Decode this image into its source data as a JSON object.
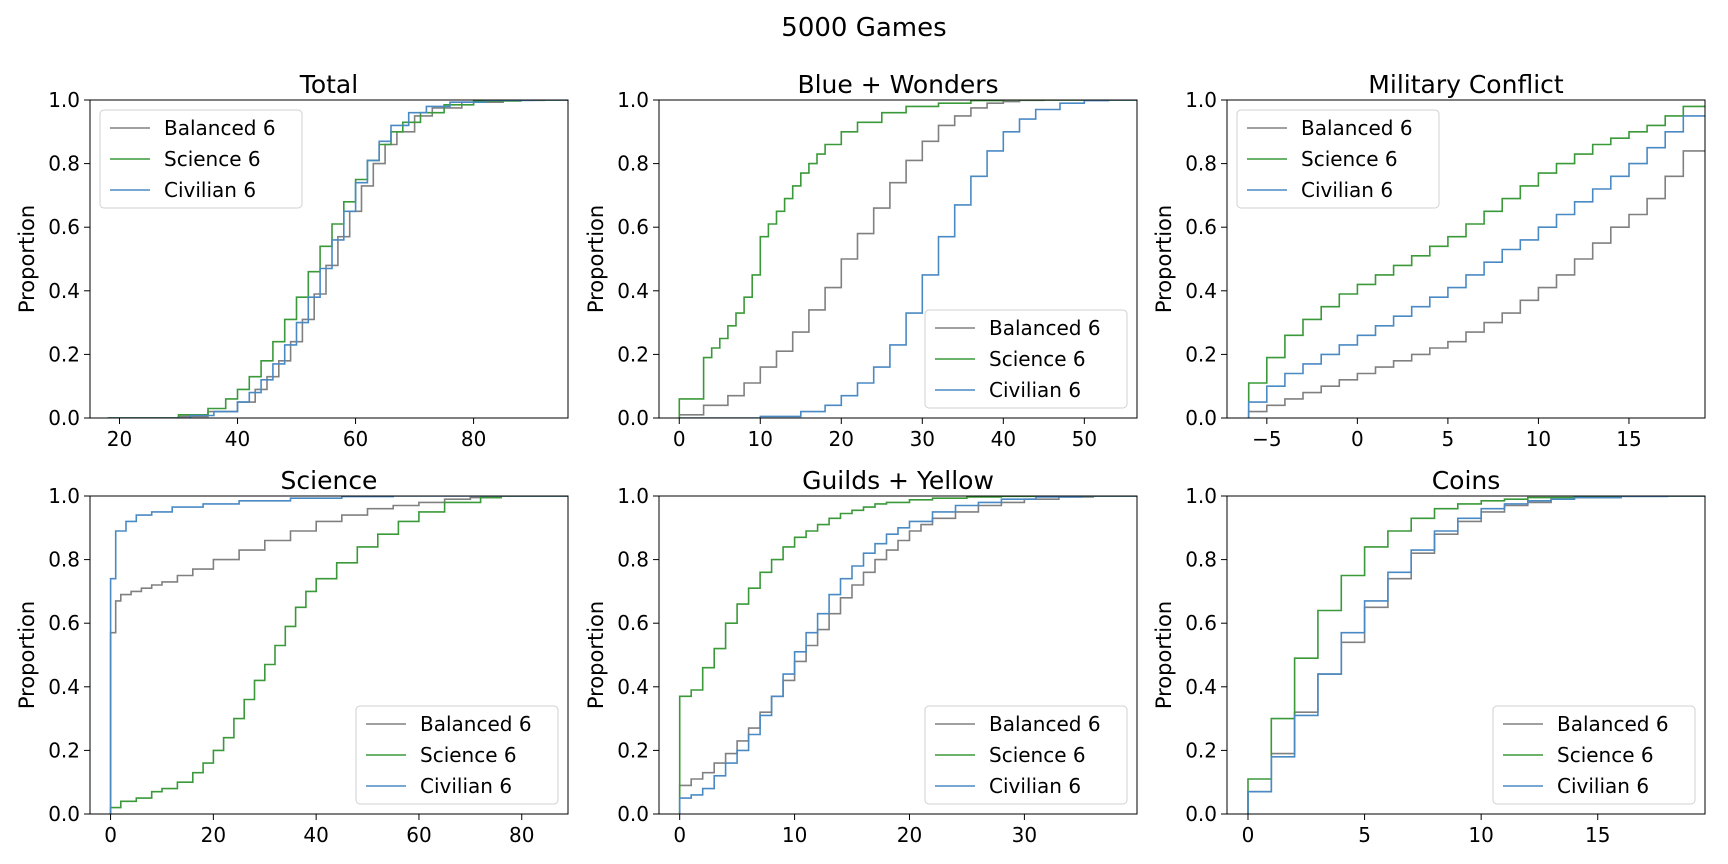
{
  "figure": {
    "title": "5000 Games"
  },
  "colors": {
    "Balanced 6": "#808080",
    "Science 6": "#3a9a3a",
    "Civilian 6": "#4a8ac4",
    "axis": "#000000"
  },
  "chart_data": [
    {
      "type": "line",
      "title": "Total",
      "ylabel": "Proportion",
      "xlabel": "",
      "xlim": [
        15,
        96
      ],
      "ylim": [
        0,
        1
      ],
      "xticks": [
        20,
        40,
        60,
        80
      ],
      "xtick_labels": [
        "20",
        "40",
        "60",
        "80"
      ],
      "yticks": [
        0,
        0.2,
        0.4,
        0.6,
        0.8,
        1.0
      ],
      "ytick_labels": [
        "0.0",
        "0.2",
        "0.4",
        "0.6",
        "0.8",
        "1.0"
      ],
      "legend": "upper-left",
      "series": [
        {
          "name": "Balanced 6",
          "x": [
            18,
            30,
            35,
            40,
            43,
            45,
            47,
            49,
            51,
            53,
            55,
            57,
            59,
            61,
            63,
            65,
            67,
            70,
            73,
            78,
            85,
            92
          ],
          "y": [
            0,
            0.005,
            0.02,
            0.05,
            0.09,
            0.13,
            0.18,
            0.24,
            0.31,
            0.39,
            0.48,
            0.57,
            0.65,
            0.73,
            0.8,
            0.86,
            0.9,
            0.95,
            0.975,
            0.993,
            0.999,
            1.0
          ]
        },
        {
          "name": "Science 6",
          "x": [
            18,
            30,
            35,
            38,
            40,
            42,
            44,
            46,
            48,
            50,
            52,
            54,
            56,
            58,
            60,
            62,
            64,
            66,
            68,
            71,
            75,
            80,
            88
          ],
          "y": [
            0,
            0.01,
            0.03,
            0.06,
            0.09,
            0.13,
            0.18,
            0.24,
            0.31,
            0.38,
            0.46,
            0.54,
            0.61,
            0.68,
            0.75,
            0.81,
            0.86,
            0.9,
            0.93,
            0.96,
            0.985,
            0.997,
            1.0
          ]
        },
        {
          "name": "Civilian 6",
          "x": [
            18,
            32,
            36,
            40,
            42,
            44,
            46,
            48,
            50,
            52,
            54,
            56,
            58,
            60,
            62,
            64,
            66,
            69,
            72,
            76,
            82,
            90
          ],
          "y": [
            0,
            0.008,
            0.02,
            0.05,
            0.08,
            0.12,
            0.17,
            0.23,
            0.3,
            0.38,
            0.47,
            0.56,
            0.65,
            0.74,
            0.81,
            0.87,
            0.92,
            0.96,
            0.98,
            0.993,
            0.999,
            1.0
          ]
        }
      ]
    },
    {
      "type": "line",
      "title": "Blue + Wonders",
      "ylabel": "Proportion",
      "xlabel": "",
      "xlim": [
        -2.5,
        56.5
      ],
      "ylim": [
        0,
        1
      ],
      "xticks": [
        0,
        10,
        20,
        30,
        40,
        50
      ],
      "xtick_labels": [
        "0",
        "10",
        "20",
        "30",
        "40",
        "50"
      ],
      "yticks": [
        0,
        0.2,
        0.4,
        0.6,
        0.8,
        1.0
      ],
      "ytick_labels": [
        "0.0",
        "0.2",
        "0.4",
        "0.6",
        "0.8",
        "1.0"
      ],
      "legend": "lower-right",
      "series": [
        {
          "name": "Balanced 6",
          "x": [
            0,
            3,
            6,
            8,
            10,
            12,
            14,
            16,
            18,
            20,
            22,
            24,
            26,
            28,
            30,
            32,
            34,
            36,
            38,
            40,
            42,
            45
          ],
          "y": [
            0.01,
            0.04,
            0.07,
            0.11,
            0.16,
            0.21,
            0.27,
            0.34,
            0.41,
            0.5,
            0.58,
            0.66,
            0.74,
            0.81,
            0.87,
            0.92,
            0.95,
            0.975,
            0.99,
            0.995,
            0.999,
            1.0
          ]
        },
        {
          "name": "Science 6",
          "x": [
            0,
            3,
            4,
            5,
            6,
            7,
            8,
            9,
            10,
            11,
            12,
            13,
            14,
            15,
            16,
            17,
            18,
            20,
            22,
            25,
            28,
            32,
            36,
            40
          ],
          "y": [
            0.06,
            0.19,
            0.22,
            0.25,
            0.29,
            0.33,
            0.38,
            0.45,
            0.57,
            0.61,
            0.65,
            0.69,
            0.73,
            0.77,
            0.8,
            0.83,
            0.86,
            0.9,
            0.93,
            0.96,
            0.98,
            0.99,
            0.998,
            1.0
          ]
        },
        {
          "name": "Civilian 6",
          "x": [
            0,
            10,
            15,
            18,
            20,
            22,
            24,
            26,
            28,
            30,
            32,
            34,
            36,
            38,
            40,
            42,
            44,
            47,
            50,
            53
          ],
          "y": [
            0,
            0.005,
            0.02,
            0.04,
            0.07,
            0.11,
            0.16,
            0.23,
            0.33,
            0.45,
            0.57,
            0.67,
            0.76,
            0.84,
            0.9,
            0.94,
            0.97,
            0.99,
            0.998,
            1.0
          ]
        }
      ]
    },
    {
      "type": "line",
      "title": "Military Conflict",
      "ylabel": "Proportion",
      "xlabel": "",
      "xlim": [
        -7.2,
        19.2
      ],
      "ylim": [
        0,
        1
      ],
      "xticks": [
        -5,
        0,
        5,
        10,
        15
      ],
      "xtick_labels": [
        "−5",
        "0",
        "5",
        "10",
        "15"
      ],
      "yticks": [
        0,
        0.2,
        0.4,
        0.6,
        0.8,
        1.0
      ],
      "ytick_labels": [
        "0.0",
        "0.2",
        "0.4",
        "0.6",
        "0.8",
        "1.0"
      ],
      "legend": "upper-left",
      "series": [
        {
          "name": "Balanced 6",
          "x": [
            -6,
            -5,
            -4,
            -3,
            -2,
            -1,
            0,
            1,
            2,
            3,
            4,
            5,
            6,
            7,
            8,
            9,
            10,
            11,
            12,
            13,
            14,
            15,
            16,
            17,
            18
          ],
          "y": [
            0.02,
            0.04,
            0.06,
            0.08,
            0.1,
            0.12,
            0.14,
            0.16,
            0.18,
            0.2,
            0.22,
            0.24,
            0.27,
            0.3,
            0.33,
            0.37,
            0.41,
            0.45,
            0.5,
            0.55,
            0.6,
            0.64,
            0.69,
            0.76,
            0.84
          ]
        },
        {
          "name": "Science 6",
          "x": [
            -6,
            -5,
            -4,
            -3,
            -2,
            -1,
            0,
            1,
            2,
            3,
            4,
            5,
            6,
            7,
            8,
            9,
            10,
            11,
            12,
            13,
            14,
            15,
            16,
            17,
            18
          ],
          "y": [
            0.11,
            0.19,
            0.26,
            0.31,
            0.35,
            0.39,
            0.42,
            0.45,
            0.48,
            0.51,
            0.54,
            0.57,
            0.61,
            0.65,
            0.69,
            0.73,
            0.77,
            0.8,
            0.83,
            0.86,
            0.88,
            0.9,
            0.92,
            0.95,
            0.98
          ]
        },
        {
          "name": "Civilian 6",
          "x": [
            -6,
            -5,
            -4,
            -3,
            -2,
            -1,
            0,
            1,
            2,
            3,
            4,
            5,
            6,
            7,
            8,
            9,
            10,
            11,
            12,
            13,
            14,
            15,
            16,
            17,
            18
          ],
          "y": [
            0.05,
            0.1,
            0.14,
            0.17,
            0.2,
            0.23,
            0.26,
            0.29,
            0.32,
            0.35,
            0.38,
            0.41,
            0.45,
            0.49,
            0.53,
            0.56,
            0.6,
            0.64,
            0.68,
            0.72,
            0.76,
            0.8,
            0.85,
            0.9,
            0.95
          ]
        }
      ]
    },
    {
      "type": "line",
      "title": "Science",
      "ylabel": "Proportion",
      "xlabel": "",
      "xlim": [
        -4,
        89
      ],
      "ylim": [
        0,
        1
      ],
      "xticks": [
        0,
        20,
        40,
        60,
        80
      ],
      "xtick_labels": [
        "0",
        "20",
        "40",
        "60",
        "80"
      ],
      "yticks": [
        0,
        0.2,
        0.4,
        0.6,
        0.8,
        1.0
      ],
      "ytick_labels": [
        "0.0",
        "0.2",
        "0.4",
        "0.6",
        "0.8",
        "1.0"
      ],
      "legend": "lower-right",
      "series": [
        {
          "name": "Balanced 6",
          "x": [
            0,
            1,
            2,
            4,
            6,
            8,
            10,
            13,
            16,
            20,
            25,
            30,
            35,
            40,
            45,
            50,
            55,
            60,
            65,
            70,
            76
          ],
          "y": [
            0.57,
            0.67,
            0.69,
            0.7,
            0.71,
            0.72,
            0.73,
            0.75,
            0.77,
            0.8,
            0.83,
            0.86,
            0.89,
            0.92,
            0.94,
            0.96,
            0.97,
            0.98,
            0.99,
            0.995,
            1.0
          ]
        },
        {
          "name": "Science 6",
          "x": [
            0,
            2,
            5,
            8,
            10,
            13,
            16,
            18,
            20,
            22,
            24,
            26,
            28,
            30,
            32,
            34,
            36,
            38,
            40,
            44,
            48,
            52,
            56,
            60,
            65,
            72,
            76
          ],
          "y": [
            0.02,
            0.04,
            0.05,
            0.07,
            0.08,
            0.1,
            0.13,
            0.16,
            0.2,
            0.24,
            0.3,
            0.36,
            0.42,
            0.47,
            0.53,
            0.59,
            0.65,
            0.7,
            0.74,
            0.79,
            0.84,
            0.88,
            0.92,
            0.95,
            0.98,
            0.995,
            1.0
          ]
        },
        {
          "name": "Civilian 6",
          "x": [
            0,
            1,
            3,
            5,
            8,
            12,
            18,
            25,
            35,
            45,
            55
          ],
          "y": [
            0.74,
            0.89,
            0.92,
            0.94,
            0.95,
            0.965,
            0.975,
            0.985,
            0.993,
            0.998,
            1.0
          ]
        }
      ]
    },
    {
      "type": "line",
      "title": "Guilds + Yellow",
      "ylabel": "Proportion",
      "xlabel": "",
      "xlim": [
        -1.8,
        39.8
      ],
      "ylim": [
        0,
        1
      ],
      "xticks": [
        0,
        10,
        20,
        30
      ],
      "xtick_labels": [
        "0",
        "10",
        "20",
        "30"
      ],
      "yticks": [
        0,
        0.2,
        0.4,
        0.6,
        0.8,
        1.0
      ],
      "ytick_labels": [
        "0.0",
        "0.2",
        "0.4",
        "0.6",
        "0.8",
        "1.0"
      ],
      "legend": "lower-right",
      "series": [
        {
          "name": "Balanced 6",
          "x": [
            0,
            1,
            2,
            3,
            4,
            5,
            6,
            7,
            8,
            9,
            10,
            11,
            12,
            13,
            14,
            15,
            16,
            17,
            18,
            19,
            20,
            21,
            22,
            24,
            26,
            28,
            30,
            33,
            36
          ],
          "y": [
            0.09,
            0.11,
            0.13,
            0.16,
            0.19,
            0.23,
            0.27,
            0.32,
            0.37,
            0.42,
            0.48,
            0.53,
            0.58,
            0.63,
            0.68,
            0.72,
            0.76,
            0.8,
            0.83,
            0.86,
            0.89,
            0.91,
            0.93,
            0.95,
            0.97,
            0.98,
            0.99,
            0.997,
            1.0
          ]
        },
        {
          "name": "Science 6",
          "x": [
            0,
            1,
            2,
            3,
            4,
            5,
            6,
            7,
            8,
            9,
            10,
            11,
            12,
            13,
            14,
            15,
            16,
            17,
            18,
            20,
            22,
            25,
            28,
            32
          ],
          "y": [
            0.37,
            0.39,
            0.46,
            0.52,
            0.6,
            0.66,
            0.71,
            0.76,
            0.8,
            0.84,
            0.87,
            0.89,
            0.91,
            0.93,
            0.945,
            0.955,
            0.965,
            0.975,
            0.98,
            0.988,
            0.993,
            0.997,
            0.999,
            1.0
          ]
        },
        {
          "name": "Civilian 6",
          "x": [
            0,
            1,
            2,
            3,
            4,
            5,
            6,
            7,
            8,
            9,
            10,
            11,
            12,
            13,
            14,
            15,
            16,
            17,
            18,
            19,
            20,
            22,
            24,
            26,
            28,
            31,
            35
          ],
          "y": [
            0.05,
            0.06,
            0.08,
            0.12,
            0.16,
            0.2,
            0.25,
            0.31,
            0.37,
            0.44,
            0.51,
            0.57,
            0.63,
            0.69,
            0.74,
            0.78,
            0.82,
            0.85,
            0.88,
            0.9,
            0.92,
            0.95,
            0.97,
            0.98,
            0.99,
            0.997,
            1.0
          ]
        }
      ]
    },
    {
      "type": "line",
      "title": "Coins",
      "ylabel": "Proportion",
      "xlabel": "",
      "xlim": [
        -0.9,
        19.6
      ],
      "ylim": [
        0,
        1
      ],
      "xticks": [
        0,
        5,
        10,
        15
      ],
      "xtick_labels": [
        "0",
        "5",
        "10",
        "15"
      ],
      "yticks": [
        0,
        0.2,
        0.4,
        0.6,
        0.8,
        1.0
      ],
      "ytick_labels": [
        "0.0",
        "0.2",
        "0.4",
        "0.6",
        "0.8",
        "1.0"
      ],
      "legend": "lower-right",
      "series": [
        {
          "name": "Balanced 6",
          "x": [
            0,
            1,
            2,
            3,
            4,
            5,
            6,
            7,
            8,
            9,
            10,
            11,
            12,
            13,
            14,
            16,
            18
          ],
          "y": [
            0.07,
            0.19,
            0.32,
            0.44,
            0.54,
            0.65,
            0.74,
            0.82,
            0.88,
            0.92,
            0.95,
            0.97,
            0.98,
            0.99,
            0.995,
            0.999,
            1.0
          ]
        },
        {
          "name": "Science 6",
          "x": [
            0,
            1,
            2,
            3,
            4,
            5,
            6,
            7,
            8,
            9,
            10,
            11,
            12,
            14,
            16
          ],
          "y": [
            0.11,
            0.3,
            0.49,
            0.64,
            0.75,
            0.84,
            0.89,
            0.93,
            0.96,
            0.975,
            0.985,
            0.99,
            0.995,
            0.999,
            1.0
          ]
        },
        {
          "name": "Civilian 6",
          "x": [
            0,
            1,
            2,
            3,
            4,
            5,
            6,
            7,
            8,
            9,
            10,
            11,
            12,
            13,
            14,
            16,
            18
          ],
          "y": [
            0.07,
            0.18,
            0.31,
            0.44,
            0.57,
            0.67,
            0.76,
            0.83,
            0.89,
            0.93,
            0.96,
            0.975,
            0.985,
            0.99,
            0.995,
            0.999,
            1.0
          ]
        }
      ]
    }
  ]
}
